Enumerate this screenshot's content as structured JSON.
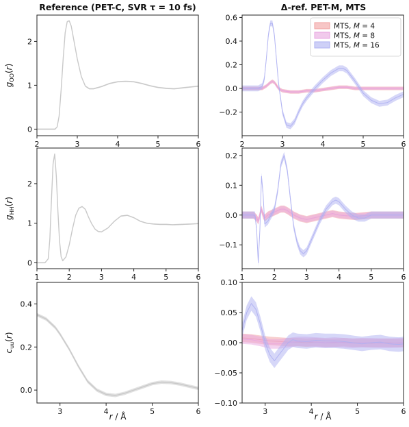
{
  "column_titles": {
    "left": "Reference (PET-C, SVR τ = 10 fs)",
    "right": "Δ-ref. PET-M, MTS"
  },
  "xlabel": "r / Å",
  "colors": {
    "reference": "#c9c9c9",
    "M4": "#f2a0a0",
    "M8": "#e8a6e0",
    "M16": "#aeb0f2"
  },
  "chart_data": [
    {
      "type": "line",
      "ylabel": "gOO(r)",
      "xlim": [
        2,
        6
      ],
      "ylim": [
        -0.15,
        2.6
      ],
      "xticks": [
        2,
        3,
        4,
        5,
        6
      ],
      "yticks": [
        0,
        1,
        2
      ],
      "series": [
        {
          "key": "reference",
          "band": 0.015,
          "x": [
            2.0,
            2.45,
            2.5,
            2.55,
            2.6,
            2.65,
            2.7,
            2.75,
            2.8,
            2.85,
            2.9,
            3.0,
            3.1,
            3.2,
            3.3,
            3.4,
            3.6,
            3.8,
            4.0,
            4.2,
            4.4,
            4.6,
            4.8,
            5.0,
            5.2,
            5.4,
            5.6,
            5.8,
            6.0
          ],
          "y": [
            0.0,
            0.0,
            0.05,
            0.3,
            0.9,
            1.6,
            2.2,
            2.45,
            2.47,
            2.35,
            2.1,
            1.6,
            1.2,
            0.98,
            0.92,
            0.92,
            0.97,
            1.04,
            1.08,
            1.09,
            1.08,
            1.04,
            0.99,
            0.95,
            0.93,
            0.92,
            0.94,
            0.96,
            0.98
          ]
        }
      ]
    },
    {
      "type": "line",
      "ylim": [
        -0.4,
        0.62
      ],
      "xlim": [
        2,
        6
      ],
      "xticks": [
        2,
        3,
        4,
        5,
        6
      ],
      "yticks": [
        -0.2,
        0.0,
        0.2,
        0.4,
        0.6
      ],
      "legend": {
        "position": "top-right"
      },
      "series": [
        {
          "key": "M4",
          "name": "MTS, M = 4",
          "band": 0.015,
          "x": [
            2.0,
            2.5,
            2.6,
            2.7,
            2.75,
            2.8,
            2.85,
            2.9,
            3.0,
            3.2,
            3.4,
            3.6,
            3.8,
            4.0,
            4.2,
            4.4,
            4.6,
            4.8,
            5.0,
            5.5,
            6.0
          ],
          "y": [
            0.0,
            0.0,
            0.02,
            0.05,
            0.06,
            0.05,
            0.03,
            0.0,
            -0.02,
            -0.03,
            -0.03,
            -0.02,
            -0.02,
            -0.01,
            0.0,
            0.01,
            0.01,
            0.0,
            0.0,
            0.0,
            0.0
          ]
        },
        {
          "key": "M8",
          "name": "MTS, M = 8",
          "band": 0.012,
          "x": [
            2.0,
            2.5,
            2.6,
            2.7,
            2.75,
            2.8,
            2.85,
            2.9,
            3.0,
            3.2,
            3.4,
            3.6,
            3.8,
            4.0,
            4.2,
            4.4,
            4.6,
            4.8,
            5.0,
            5.5,
            6.0
          ],
          "y": [
            0.0,
            0.0,
            0.02,
            0.05,
            0.06,
            0.05,
            0.02,
            0.0,
            -0.02,
            -0.03,
            -0.03,
            -0.02,
            -0.02,
            -0.01,
            0.0,
            0.01,
            0.01,
            0.0,
            0.0,
            0.0,
            0.0
          ]
        },
        {
          "key": "M16",
          "name": "MTS, M = 16",
          "band": 0.025,
          "x": [
            2.0,
            2.4,
            2.5,
            2.55,
            2.6,
            2.65,
            2.7,
            2.75,
            2.8,
            2.85,
            2.9,
            3.0,
            3.1,
            3.2,
            3.3,
            3.4,
            3.5,
            3.6,
            3.8,
            4.0,
            4.2,
            4.4,
            4.5,
            4.6,
            4.8,
            5.0,
            5.2,
            5.4,
            5.6,
            5.8,
            6.0
          ],
          "y": [
            0.0,
            0.0,
            0.02,
            0.08,
            0.25,
            0.45,
            0.55,
            0.55,
            0.45,
            0.25,
            0.05,
            -0.2,
            -0.31,
            -0.32,
            -0.28,
            -0.2,
            -0.13,
            -0.08,
            0.0,
            0.07,
            0.13,
            0.17,
            0.17,
            0.15,
            0.06,
            -0.04,
            -0.1,
            -0.13,
            -0.12,
            -0.08,
            -0.05
          ]
        }
      ]
    },
    {
      "type": "line",
      "ylabel": "gHH(r)",
      "xlim": [
        1,
        6
      ],
      "ylim": [
        -0.15,
        2.9
      ],
      "xticks": [
        1,
        2,
        3,
        4,
        5,
        6
      ],
      "yticks": [
        0,
        1,
        2
      ],
      "series": [
        {
          "key": "reference",
          "band": 0.015,
          "x": [
            1.0,
            1.25,
            1.35,
            1.4,
            1.45,
            1.5,
            1.55,
            1.6,
            1.65,
            1.7,
            1.75,
            1.8,
            1.9,
            2.0,
            2.1,
            2.2,
            2.3,
            2.4,
            2.5,
            2.6,
            2.7,
            2.8,
            2.9,
            3.0,
            3.2,
            3.4,
            3.6,
            3.8,
            4.0,
            4.2,
            4.4,
            4.6,
            4.8,
            5.0,
            5.2,
            5.5,
            5.8,
            6.0
          ],
          "y": [
            0.0,
            0.0,
            0.1,
            0.6,
            1.6,
            2.5,
            2.75,
            2.2,
            1.3,
            0.55,
            0.15,
            0.05,
            0.15,
            0.45,
            0.85,
            1.2,
            1.38,
            1.42,
            1.35,
            1.15,
            0.98,
            0.85,
            0.79,
            0.78,
            0.88,
            1.05,
            1.18,
            1.2,
            1.14,
            1.05,
            1.0,
            0.98,
            0.97,
            0.97,
            0.96,
            0.97,
            0.98,
            0.99
          ]
        }
      ]
    },
    {
      "type": "line",
      "xlim": [
        1,
        6
      ],
      "ylim": [
        -0.18,
        0.225
      ],
      "xticks": [
        1,
        2,
        3,
        4,
        5,
        6
      ],
      "yticks": [
        -0.1,
        0.0,
        0.1,
        0.2
      ],
      "series": [
        {
          "key": "M4",
          "band": 0.012,
          "x": [
            1.0,
            1.35,
            1.45,
            1.5,
            1.55,
            1.6,
            1.65,
            1.7,
            1.8,
            2.0,
            2.2,
            2.3,
            2.4,
            2.6,
            2.8,
            3.0,
            3.2,
            3.4,
            3.6,
            3.8,
            4.0,
            4.5,
            5.0,
            5.5,
            6.0
          ],
          "y": [
            0.0,
            0.0,
            -0.01,
            -0.02,
            0.0,
            0.02,
            0.0,
            -0.01,
            0.0,
            0.01,
            0.02,
            0.02,
            0.015,
            0.0,
            -0.01,
            -0.015,
            -0.01,
            -0.005,
            0.0,
            0.005,
            0.0,
            -0.005,
            0.0,
            0.0,
            0.0
          ]
        },
        {
          "key": "M8",
          "band": 0.01,
          "x": [
            1.0,
            1.35,
            1.45,
            1.5,
            1.55,
            1.6,
            1.65,
            1.7,
            1.8,
            2.0,
            2.2,
            2.3,
            2.4,
            2.6,
            2.8,
            3.0,
            3.2,
            3.4,
            3.6,
            3.8,
            4.0,
            4.5,
            5.0,
            5.5,
            6.0
          ],
          "y": [
            0.0,
            0.0,
            -0.01,
            -0.02,
            0.0,
            0.02,
            0.0,
            -0.01,
            0.0,
            0.01,
            0.02,
            0.02,
            0.015,
            0.0,
            -0.01,
            -0.015,
            -0.01,
            -0.005,
            0.0,
            0.005,
            0.0,
            -0.005,
            0.0,
            0.0,
            0.0
          ]
        },
        {
          "key": "M16",
          "band": 0.012,
          "x": [
            1.0,
            1.4,
            1.45,
            1.5,
            1.55,
            1.6,
            1.65,
            1.7,
            1.8,
            1.9,
            2.0,
            2.1,
            2.2,
            2.3,
            2.4,
            2.5,
            2.6,
            2.7,
            2.8,
            2.9,
            3.0,
            3.2,
            3.4,
            3.6,
            3.8,
            3.9,
            4.0,
            4.2,
            4.4,
            4.6,
            4.8,
            5.0,
            5.5,
            6.0
          ],
          "y": [
            0.0,
            0.0,
            -0.05,
            -0.16,
            -0.05,
            0.13,
            0.07,
            -0.03,
            -0.02,
            0.0,
            0.02,
            0.08,
            0.17,
            0.2,
            0.15,
            0.05,
            -0.04,
            -0.09,
            -0.12,
            -0.13,
            -0.12,
            -0.07,
            -0.02,
            0.02,
            0.045,
            0.05,
            0.045,
            0.02,
            0.0,
            -0.01,
            -0.01,
            0.0,
            0.0,
            0.0
          ]
        }
      ]
    },
    {
      "type": "line",
      "ylabel": "cuu(r)",
      "xlim": [
        2.5,
        6
      ],
      "ylim": [
        -0.06,
        0.5
      ],
      "xticks": [
        3,
        4,
        5,
        6
      ],
      "yticks": [
        0.0,
        0.2,
        0.4
      ],
      "series": [
        {
          "key": "reference",
          "band": 0.008,
          "x": [
            2.5,
            2.7,
            2.9,
            3.0,
            3.2,
            3.4,
            3.6,
            3.8,
            4.0,
            4.2,
            4.4,
            4.6,
            4.8,
            5.0,
            5.2,
            5.4,
            5.6,
            5.8,
            6.0
          ],
          "y": [
            0.35,
            0.33,
            0.29,
            0.26,
            0.19,
            0.11,
            0.04,
            0.0,
            -0.02,
            -0.025,
            -0.015,
            0.0,
            0.015,
            0.03,
            0.037,
            0.035,
            0.028,
            0.018,
            0.008
          ]
        }
      ]
    },
    {
      "type": "line",
      "xlim": [
        2.5,
        6
      ],
      "ylim": [
        -0.1,
        0.1
      ],
      "xticks": [
        3,
        4,
        5,
        6
      ],
      "yticks": [
        -0.1,
        -0.05,
        0.0,
        0.05,
        0.1
      ],
      "series": [
        {
          "key": "M4",
          "band": 0.007,
          "x": [
            2.5,
            2.7,
            2.9,
            3.1,
            3.3,
            3.5,
            3.7,
            3.9,
            4.1,
            4.3,
            4.5,
            4.7,
            4.9,
            5.1,
            5.3,
            5.5,
            5.7,
            5.9,
            6.0
          ],
          "y": [
            0.008,
            0.007,
            0.005,
            0.003,
            0.002,
            0.001,
            0.001,
            0.0,
            0.001,
            0.0,
            0.0,
            0.001,
            0.0,
            0.0,
            -0.001,
            0.0,
            0.0,
            -0.001,
            0.0
          ]
        },
        {
          "key": "M8",
          "band": 0.008,
          "x": [
            2.5,
            2.7,
            2.9,
            3.1,
            3.3,
            3.5,
            3.7,
            3.9,
            4.1,
            4.3,
            4.5,
            4.7,
            4.9,
            5.1,
            5.3,
            5.5,
            5.7,
            5.9,
            6.0
          ],
          "y": [
            0.006,
            0.005,
            0.002,
            -0.002,
            -0.002,
            0.0,
            0.002,
            0.002,
            0.001,
            0.0,
            0.001,
            0.0,
            -0.001,
            0.0,
            0.0,
            -0.001,
            -0.001,
            0.0,
            0.0
          ]
        },
        {
          "key": "M16",
          "band": 0.012,
          "x": [
            2.5,
            2.6,
            2.7,
            2.8,
            2.9,
            3.0,
            3.1,
            3.2,
            3.3,
            3.4,
            3.5,
            3.6,
            3.7,
            3.9,
            4.1,
            4.3,
            4.5,
            4.7,
            4.9,
            5.1,
            5.3,
            5.5,
            5.7,
            5.9,
            6.0
          ],
          "y": [
            0.02,
            0.05,
            0.065,
            0.055,
            0.03,
            0.0,
            -0.02,
            -0.03,
            -0.02,
            -0.01,
            0.0,
            0.005,
            0.003,
            0.002,
            0.004,
            0.003,
            0.003,
            0.002,
            0.0,
            -0.002,
            0.0,
            0.001,
            -0.002,
            -0.003,
            -0.002
          ]
        }
      ]
    }
  ]
}
